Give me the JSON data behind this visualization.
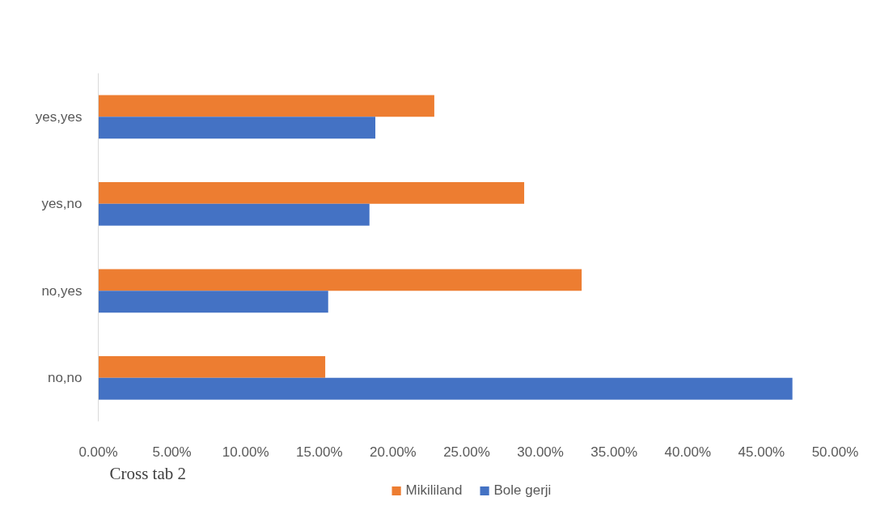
{
  "chart_data": {
    "type": "bar",
    "orientation": "horizontal",
    "categories": [
      "yes,yes",
      "yes,no",
      "no,yes",
      "no,no"
    ],
    "series": [
      {
        "name": "Mikililand",
        "color": "#ed7d31",
        "values": [
          22.8,
          28.9,
          32.8,
          15.4
        ]
      },
      {
        "name": "Bole gerji",
        "color": "#4472c4",
        "values": [
          18.8,
          18.4,
          15.6,
          47.1
        ]
      }
    ],
    "xlim": [
      0,
      50
    ],
    "xticks": [
      {
        "value": 0,
        "label": "0.00%"
      },
      {
        "value": 5,
        "label": "5.00%"
      },
      {
        "value": 10,
        "label": "10.00%"
      },
      {
        "value": 15,
        "label": "15.00%"
      },
      {
        "value": 20,
        "label": "20.00%"
      },
      {
        "value": 25,
        "label": "25.00%"
      },
      {
        "value": 30,
        "label": "30.00%"
      },
      {
        "value": 35,
        "label": "35.00%"
      },
      {
        "value": 40,
        "label": "40.00%"
      },
      {
        "value": 45,
        "label": "45.00%"
      },
      {
        "value": 50,
        "label": "50.00%"
      }
    ],
    "grid": false,
    "legend": "bottom",
    "annotations": [
      "Cross tab 2"
    ]
  }
}
